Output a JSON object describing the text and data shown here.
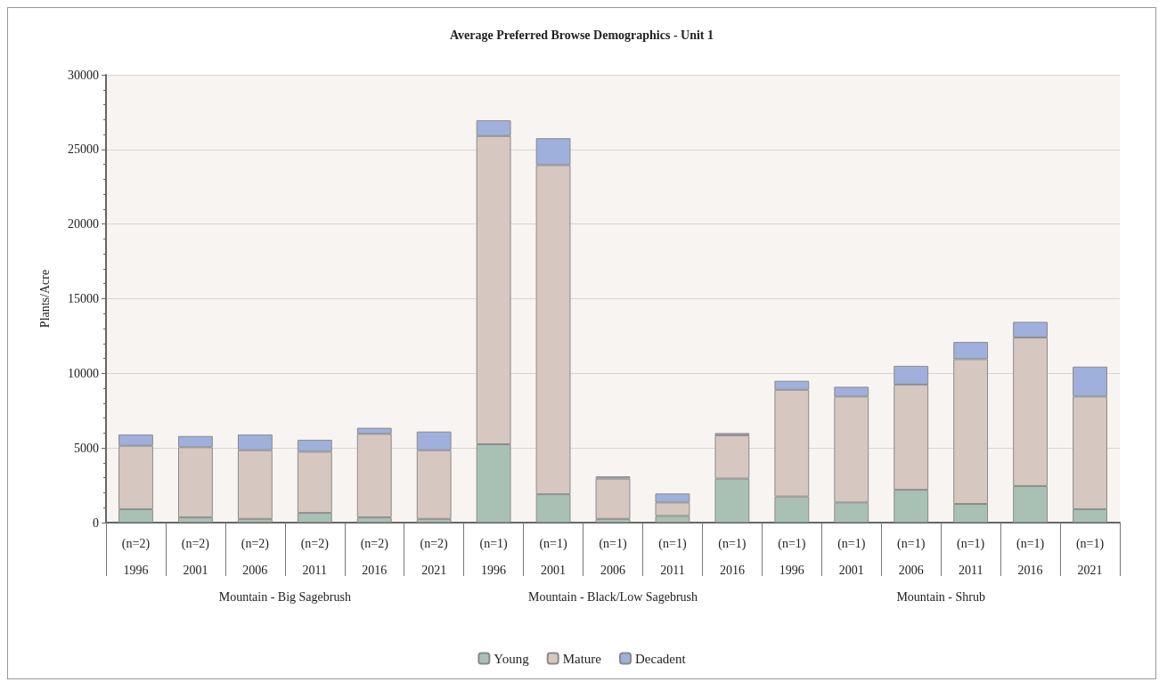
{
  "chart_data": {
    "type": "bar",
    "title": "Average Preferred Browse Demographics - Unit 1",
    "ylabel": "Plants/Acre",
    "categories": [
      "(n=2)\n1996",
      "(n=2)\n2001",
      "(n=2)\n2006",
      "(n=2)\n2011",
      "(n=2)\n2016",
      "(n=2)\n2021",
      "(n=1)\n1996",
      "(n=1)\n2001",
      "(n=1)\n2006",
      "(n=1)\n2011",
      "(n=1)\n2016",
      "(n=1)\n1996",
      "(n=1)\n2001",
      "(n=1)\n2006",
      "(n=1)\n2011",
      "(n=1)\n2016",
      "(n=1)\n2021"
    ],
    "annotations": [
      "Mountain - Big Sagebrush",
      "Mountain - Black/Low Sagebrush",
      "Mountain - Shrub"
    ],
    "stacked": true,
    "series": [
      {
        "name": "Young",
        "color": "#a9c1b5",
        "values": [
          900,
          350,
          250,
          650,
          350,
          250,
          5250,
          1900,
          250,
          450,
          2950,
          1750,
          1350,
          2200,
          1250,
          2450,
          900
        ]
      },
      {
        "name": "Mature",
        "color": "#d6c8c0",
        "values": [
          4250,
          4700,
          4600,
          4100,
          5600,
          4600,
          20650,
          22050,
          2700,
          900,
          2900,
          7150,
          7100,
          7050,
          9700,
          9950,
          7550
        ]
      },
      {
        "name": "Decadent",
        "color": "#9fb0dc",
        "values": [
          750,
          750,
          1050,
          800,
          400,
          1250,
          1050,
          1800,
          150,
          600,
          150,
          600,
          650,
          1250,
          1150,
          1050,
          2000
        ]
      }
    ],
    "ylim": [
      0,
      30000
    ],
    "yticks": [
      0,
      5000,
      10000,
      15000,
      20000,
      25000,
      30000
    ],
    "grid": "y",
    "legend": "bottom"
  }
}
